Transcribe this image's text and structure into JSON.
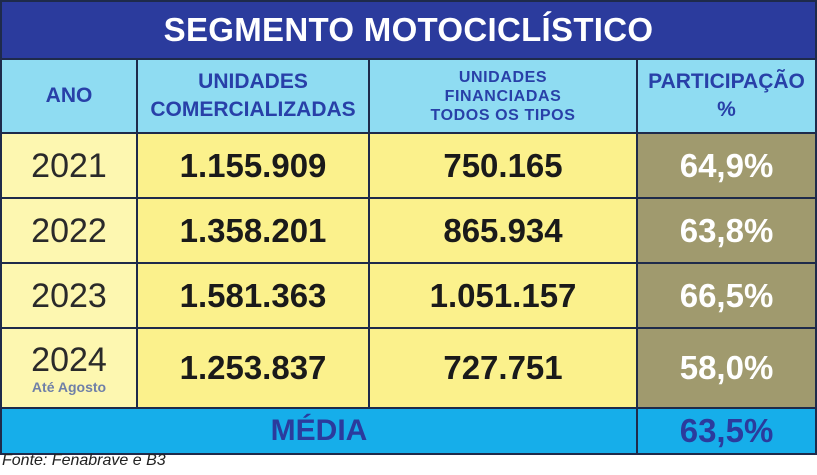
{
  "title": "SEGMENTO MOTOCICLÍSTICO",
  "headers": {
    "ano": "ANO",
    "unidades_line1": "UNIDADES",
    "unidades_line2": "COMERCIALIZADAS",
    "financiadas_line1": "UNIDADES",
    "financiadas_line2": "FINANCIADAS",
    "financiadas_line3": "TODOS OS TIPOS",
    "participacao_line1": "PARTICIPAÇÃO",
    "participacao_line2": "%"
  },
  "rows": [
    {
      "year": "2021",
      "note": "",
      "comercializadas": "1.155.909",
      "financiadas": "750.165",
      "participacao": "64,9%"
    },
    {
      "year": "2022",
      "note": "",
      "comercializadas": "1.358.201",
      "financiadas": "865.934",
      "participacao": "63,8%"
    },
    {
      "year": "2023",
      "note": "",
      "comercializadas": "1.581.363",
      "financiadas": "1.051.157",
      "participacao": "66,5%"
    },
    {
      "year": "2024",
      "note": "Até Agosto",
      "comercializadas": "1.253.837",
      "financiadas": "727.751",
      "participacao": "58,0%"
    }
  ],
  "media": {
    "label": "MÉDIA",
    "value": "63,5%"
  },
  "source": "Fonte: Fenabrave e B3",
  "colors": {
    "title_bg": "#2b3b9d",
    "header_bg": "#8fdcf2",
    "header_text": "#2840a8",
    "year_bg": "#fdf7b0",
    "value_bg": "#fbf18c",
    "pct_bg": "#a09a6e",
    "avg_bg": "#16aeea"
  }
}
